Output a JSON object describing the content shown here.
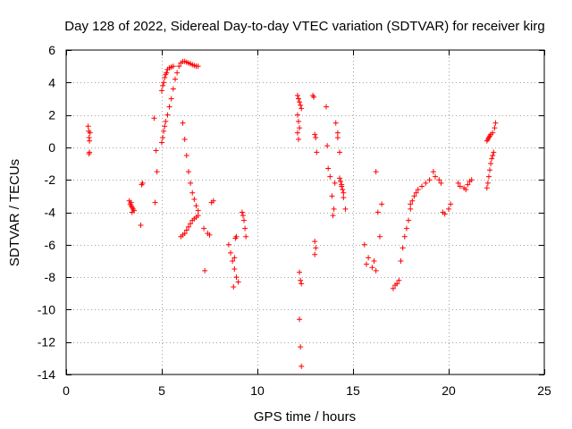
{
  "chart_data": {
    "type": "scatter",
    "title": "Day 128 of 2022, Sidereal Day-to-day VTEC variation (SDTVAR) for receiver kirg",
    "xlabel": "GPS time / hours",
    "ylabel": "SDTVAR / TECUs",
    "xlim": [
      0,
      25
    ],
    "ylim": [
      -14,
      6
    ],
    "xticks": [
      0,
      5,
      10,
      15,
      20,
      25
    ],
    "yticks": [
      -14,
      -12,
      -10,
      -8,
      -6,
      -4,
      -2,
      0,
      2,
      4,
      6
    ],
    "grid": true,
    "legend": "none",
    "marker": "+",
    "series": [
      {
        "name": "SDTVAR",
        "color": "#ff0000",
        "x": [
          1.15,
          1.18,
          1.2,
          1.22,
          1.25,
          1.22,
          1.2,
          3.3,
          3.35,
          3.4,
          3.45,
          3.5,
          3.55,
          3.45,
          3.4,
          3.95,
          4.0,
          3.9,
          4.65,
          4.7,
          4.6,
          4.75,
          5.0,
          5.05,
          5.1,
          5.15,
          5.2,
          5.25,
          5.3,
          5.4,
          5.5,
          5.6,
          5.0,
          5.05,
          5.1,
          5.15,
          5.2,
          5.3,
          5.4,
          5.5,
          5.6,
          5.7,
          5.8,
          5.9,
          6.0,
          6.1,
          6.2,
          6.3,
          6.4,
          6.5,
          6.6,
          6.7,
          6.8,
          6.9,
          6.1,
          6.2,
          6.3,
          6.4,
          6.5,
          6.6,
          6.7,
          6.8,
          6.9,
          6.0,
          6.1,
          6.2,
          6.3,
          6.4,
          6.5,
          6.6,
          6.7,
          6.8,
          6.9,
          7.2,
          7.4,
          7.5,
          7.6,
          7.7,
          7.25,
          8.5,
          8.6,
          8.7,
          8.8,
          8.9,
          9.0,
          8.75,
          8.8,
          8.85,
          8.9,
          9.2,
          9.25,
          9.3,
          9.35,
          9.4,
          12.1,
          12.15,
          12.2,
          12.25,
          12.3,
          12.1,
          12.15,
          12.2,
          12.1,
          12.15,
          12.2,
          12.25,
          12.3,
          12.2,
          12.25,
          12.3,
          12.9,
          12.95,
          13.0,
          13.05,
          13.1,
          13.0,
          13.05,
          13.0,
          13.6,
          13.65,
          13.7,
          13.8,
          13.9,
          14.0,
          14.1,
          14.2,
          13.95,
          14.05,
          14.2,
          14.3,
          14.4,
          14.5,
          14.6,
          14.3,
          14.35,
          14.4,
          14.45,
          14.5,
          15.6,
          15.7,
          15.8,
          16.0,
          16.1,
          16.2,
          16.3,
          16.4,
          16.2,
          16.5,
          17.1,
          17.2,
          17.3,
          17.4,
          17.5,
          17.6,
          17.7,
          17.8,
          17.9,
          18.0,
          18.0,
          18.1,
          18.2,
          18.3,
          18.4,
          18.6,
          18.8,
          19.0,
          19.2,
          19.3,
          19.5,
          19.6,
          19.7,
          19.8,
          20.0,
          20.1,
          20.5,
          20.6,
          20.8,
          20.9,
          21.0,
          21.1,
          21.2,
          22.0,
          22.05,
          22.1,
          22.15,
          22.2,
          22.25,
          22.3,
          22.35,
          22.0,
          22.05,
          22.1,
          22.15,
          22.2,
          22.3,
          22.4,
          22.45
        ],
        "y": [
          1.3,
          1.0,
          0.6,
          0.4,
          0.9,
          -0.3,
          -0.4,
          -3.3,
          -3.5,
          -3.6,
          -3.7,
          -3.8,
          -3.9,
          -4.0,
          -3.4,
          -2.3,
          -2.2,
          -4.8,
          -3.4,
          -0.2,
          1.8,
          -1.5,
          3.5,
          3.8,
          4.0,
          4.3,
          4.5,
          4.6,
          4.8,
          4.9,
          4.95,
          5.0,
          0.3,
          0.6,
          1.0,
          1.3,
          1.6,
          2.0,
          2.5,
          3.0,
          3.6,
          4.2,
          4.6,
          5.0,
          5.2,
          5.3,
          5.3,
          5.25,
          5.2,
          5.15,
          5.1,
          5.05,
          5.0,
          5.0,
          1.5,
          0.5,
          -0.5,
          -1.5,
          -2.2,
          -2.8,
          -3.2,
          -3.6,
          -3.9,
          -5.5,
          -5.4,
          -5.3,
          -5.1,
          -4.9,
          -4.7,
          -4.5,
          -4.4,
          -4.3,
          -4.2,
          -5.0,
          -5.3,
          -5.4,
          -3.4,
          -3.3,
          -7.6,
          -6.0,
          -6.5,
          -7.0,
          -7.5,
          -8.0,
          -8.3,
          -8.6,
          -6.8,
          -5.6,
          -5.5,
          -4.0,
          -4.2,
          -4.5,
          -5.0,
          -5.5,
          3.2,
          3.0,
          2.8,
          2.6,
          2.4,
          2.0,
          1.6,
          1.2,
          0.9,
          0.5,
          -7.7,
          -8.2,
          -8.4,
          -10.6,
          -12.3,
          -13.5,
          3.2,
          3.1,
          0.8,
          0.6,
          -0.3,
          -5.8,
          -6.2,
          -6.6,
          2.5,
          0.1,
          -1.3,
          -1.8,
          -3.0,
          -3.8,
          1.5,
          0.9,
          -4.2,
          -2.2,
          0.6,
          -0.3,
          -2.3,
          -3.1,
          -3.8,
          -1.9,
          -2.1,
          -2.4,
          -2.6,
          -2.8,
          -6.0,
          -7.2,
          -6.8,
          -7.4,
          -7.0,
          -1.5,
          -4.0,
          -5.5,
          -7.6,
          -3.5,
          -8.7,
          -8.5,
          -8.4,
          -8.2,
          -7.0,
          -6.2,
          -5.5,
          -5.0,
          -4.5,
          -3.8,
          -3.5,
          -3.3,
          -3.0,
          -2.8,
          -2.6,
          -2.4,
          -2.2,
          -2.0,
          -1.5,
          -1.8,
          -2.0,
          -2.2,
          -4.0,
          -4.1,
          -3.8,
          -3.5,
          -2.2,
          -2.4,
          -2.5,
          -2.6,
          -2.3,
          -2.1,
          -2.0,
          -2.5,
          -2.2,
          -1.8,
          -1.4,
          -1.0,
          -0.7,
          -0.5,
          -0.3,
          0.4,
          0.5,
          0.6,
          0.7,
          0.8,
          0.9,
          1.2,
          1.5
        ]
      }
    ]
  }
}
